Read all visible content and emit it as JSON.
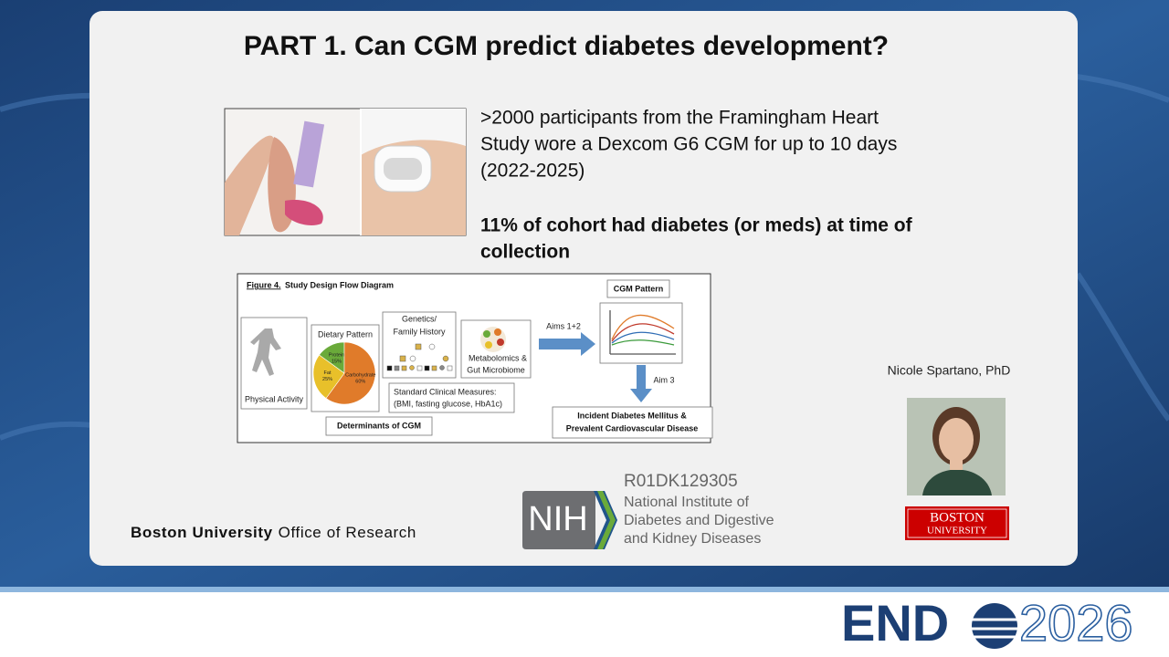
{
  "slide": {
    "title": "PART 1. Can CGM predict diabetes development?",
    "intro_lines": [
      ">2000 participants from the Framingham Heart",
      "Study wore a Dexcom G6 CGM for up to 10 days",
      "(2022-2025)"
    ],
    "highlight_lines": [
      "11% of cohort had diabetes (or meds) at time of",
      "collection"
    ],
    "figure": {
      "label": "Figure 4.",
      "title": "Study Design Flow Diagram",
      "physical_activity": "Physical Activity",
      "dietary_pattern": "Dietary Pattern",
      "diet_pie": [
        {
          "name": "Protein",
          "value": 15,
          "value_label": "15%",
          "color": "#6aaa3a"
        },
        {
          "name": "Carbohydrate",
          "value": 60,
          "value_label": "60%",
          "color": "#e07b2a"
        },
        {
          "name": "Fat",
          "value": 25,
          "value_label": "25%",
          "color": "#e8c02a"
        }
      ],
      "genetics": [
        "Genetics/",
        "Family History"
      ],
      "metabolomics": [
        "Metabolomics &",
        "Gut Microbiome"
      ],
      "clinical": [
        "Standard Clinical Measures:",
        "(BMI, fasting glucose, HbA1c)"
      ],
      "determinants": "Determinants of CGM",
      "aims_1_2": "Aims 1+2",
      "cgm_pattern": "CGM Pattern",
      "aim_3": "Aim 3",
      "outcomes": [
        "Incident Diabetes Mellitus &",
        "Prevalent Cardiovascular Disease"
      ]
    },
    "speaker": "Nicole Spartano, PhD",
    "footer_org_bold": "Boston University",
    "footer_org": "Office of Research",
    "grant": "R01DK129305",
    "nih": "NIH",
    "nih_institute": [
      "National Institute of",
      "Diabetes and Digestive",
      "and Kidney Diseases"
    ],
    "bu_logo": [
      "BOSTON",
      "UNIVERSITY"
    ],
    "event": {
      "name_start": "END",
      "year": "2026"
    }
  }
}
